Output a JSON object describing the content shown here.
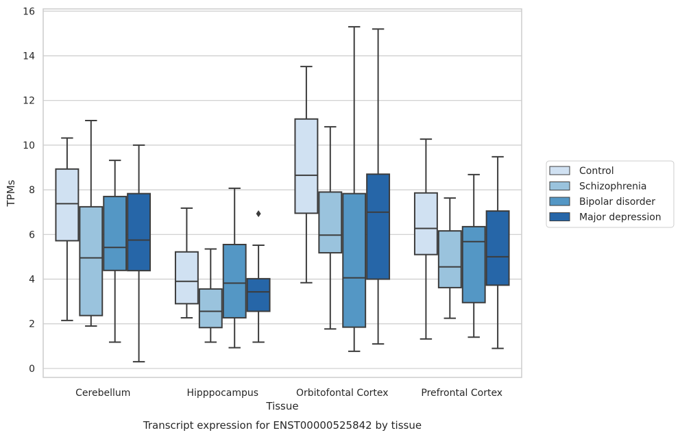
{
  "caption": "Transcript expression for ENST00000525842 by tissue",
  "chart_data": {
    "type": "boxplot",
    "xlabel": "Tissue",
    "ylabel": "TPMs",
    "ylim": [
      -0.4,
      16.1
    ],
    "yticks": [
      0,
      2,
      4,
      6,
      8,
      10,
      12,
      14,
      16
    ],
    "grid": true,
    "legend_placement": "right",
    "categories": [
      "Cerebellum",
      "Hipppocampus",
      "Orbitofontal Cortex",
      "Prefrontal Cortex"
    ],
    "series": [
      {
        "name": "Control",
        "color": "#d0e1f2",
        "boxes": [
          {
            "whislo": 2.15,
            "q1": 5.72,
            "med": 7.38,
            "q3": 8.93,
            "whishi": 10.32,
            "fliers": []
          },
          {
            "whislo": 2.27,
            "q1": 2.9,
            "med": 3.9,
            "q3": 5.22,
            "whishi": 7.18,
            "fliers": []
          },
          {
            "whislo": 3.84,
            "q1": 6.95,
            "med": 8.65,
            "q3": 11.17,
            "whishi": 13.52,
            "fliers": []
          },
          {
            "whislo": 1.32,
            "q1": 5.1,
            "med": 6.27,
            "q3": 7.86,
            "whishi": 10.27,
            "fliers": []
          }
        ]
      },
      {
        "name": "Schizophrenia",
        "color": "#9ac3dd",
        "boxes": [
          {
            "whislo": 1.9,
            "q1": 2.37,
            "med": 4.95,
            "q3": 7.24,
            "whishi": 11.1,
            "fliers": []
          },
          {
            "whislo": 1.18,
            "q1": 1.83,
            "med": 2.56,
            "q3": 3.56,
            "whishi": 5.35,
            "fliers": []
          },
          {
            "whislo": 1.77,
            "q1": 5.18,
            "med": 5.97,
            "q3": 7.9,
            "whishi": 10.82,
            "fliers": []
          },
          {
            "whislo": 2.25,
            "q1": 3.62,
            "med": 4.55,
            "q3": 6.16,
            "whishi": 7.63,
            "fliers": []
          }
        ]
      },
      {
        "name": "Bipolar disorder",
        "color": "#5497c5",
        "boxes": [
          {
            "whislo": 1.18,
            "q1": 4.39,
            "med": 5.42,
            "q3": 7.7,
            "whishi": 9.32,
            "fliers": []
          },
          {
            "whislo": 0.93,
            "q1": 2.27,
            "med": 3.82,
            "q3": 5.55,
            "whishi": 8.07,
            "fliers": []
          },
          {
            "whislo": 0.77,
            "q1": 1.85,
            "med": 4.06,
            "q3": 7.83,
            "whishi": 15.3,
            "fliers": []
          },
          {
            "whislo": 1.4,
            "q1": 2.95,
            "med": 5.68,
            "q3": 6.35,
            "whishi": 8.68,
            "fliers": []
          }
        ]
      },
      {
        "name": "Major depression",
        "color": "#2666a8",
        "boxes": [
          {
            "whislo": 0.3,
            "q1": 4.38,
            "med": 5.75,
            "q3": 7.83,
            "whishi": 10.0,
            "fliers": []
          },
          {
            "whislo": 1.18,
            "q1": 2.56,
            "med": 3.43,
            "q3": 4.02,
            "whishi": 5.52,
            "fliers": [
              6.93
            ]
          },
          {
            "whislo": 1.1,
            "q1": 4.0,
            "med": 7.0,
            "q3": 8.7,
            "whishi": 15.2,
            "fliers": []
          },
          {
            "whislo": 0.9,
            "q1": 3.73,
            "med": 5.0,
            "q3": 7.05,
            "whishi": 9.48,
            "fliers": []
          }
        ]
      }
    ]
  }
}
